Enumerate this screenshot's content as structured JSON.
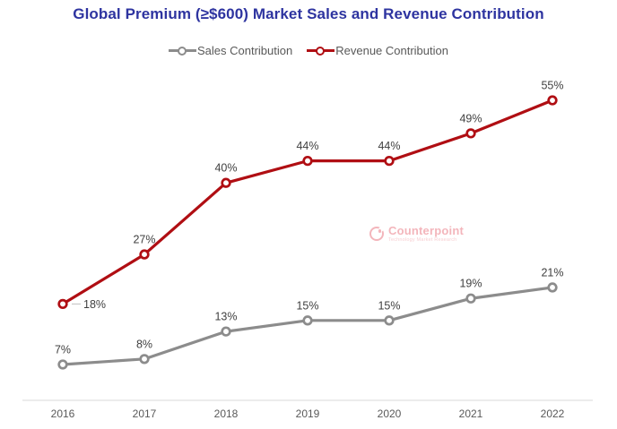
{
  "title": "Global Premium (≥$600) Market Sales and Revenue Contribution",
  "watermark": {
    "name": "Counterpoint",
    "tagline": "Technology Market Research"
  },
  "colors": {
    "title": "#2E34A0",
    "data_label": "#404040",
    "axis_label": "#595959",
    "axis_line": "#D9D9D9",
    "leader_line": "#BFBFBF",
    "legend_text": "#595959",
    "watermark": "#F2A9B0",
    "watermark_tagline": "#F6C6CA",
    "background": "#FFFFFF"
  },
  "chart_data": {
    "type": "line",
    "categories": [
      "2016",
      "2017",
      "2018",
      "2019",
      "2020",
      "2021",
      "2022"
    ],
    "series": [
      {
        "name": "Sales Contribution",
        "color": "#8C8C8C",
        "values": [
          7,
          8,
          13,
          15,
          15,
          19,
          21
        ],
        "labels": [
          "7%",
          "8%",
          "13%",
          "15%",
          "15%",
          "19%",
          "21%"
        ],
        "label_placement_overrides": {}
      },
      {
        "name": "Revenue Contribution",
        "color": "#B00E13",
        "values": [
          18,
          27,
          40,
          44,
          44,
          49,
          55
        ],
        "labels": [
          "18%",
          "27%",
          "40%",
          "44%",
          "44%",
          "49%",
          "55%"
        ],
        "label_placement_overrides": {
          "0": "right-leader"
        }
      }
    ],
    "xlabel": "",
    "ylabel": "",
    "ylim": [
      0,
      60
    ],
    "grid": false,
    "legend_position": "top",
    "marker": "circle-open",
    "data_labels": true
  }
}
